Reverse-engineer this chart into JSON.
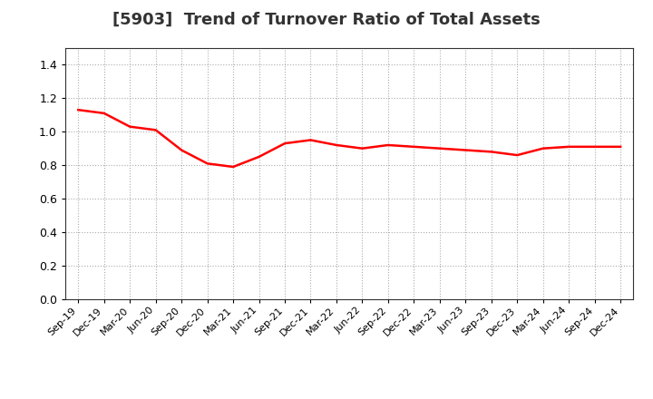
{
  "title": "[5903]  Trend of Turnover Ratio of Total Assets",
  "line_color": "#FF0000",
  "line_width": 1.8,
  "background_color": "#FFFFFF",
  "grid_color": "#AAAAAA",
  "ylim": [
    0.0,
    1.5
  ],
  "yticks": [
    0.0,
    0.2,
    0.4,
    0.6,
    0.8,
    1.0,
    1.2,
    1.4
  ],
  "labels": [
    "Sep-19",
    "Dec-19",
    "Mar-20",
    "Jun-20",
    "Sep-20",
    "Dec-20",
    "Mar-21",
    "Jun-21",
    "Sep-21",
    "Dec-21",
    "Mar-22",
    "Jun-22",
    "Sep-22",
    "Dec-22",
    "Mar-23",
    "Jun-23",
    "Sep-23",
    "Dec-23",
    "Mar-24",
    "Jun-24",
    "Sep-24",
    "Dec-24"
  ],
  "values": [
    1.13,
    1.11,
    1.03,
    1.01,
    0.89,
    0.81,
    0.79,
    0.85,
    0.93,
    0.95,
    0.92,
    0.9,
    0.92,
    0.91,
    0.9,
    0.89,
    0.88,
    0.86,
    0.9,
    0.91,
    0.91,
    0.91
  ],
  "title_fontsize": 13,
  "tick_fontsize": 9,
  "xlabel_fontsize": 8
}
